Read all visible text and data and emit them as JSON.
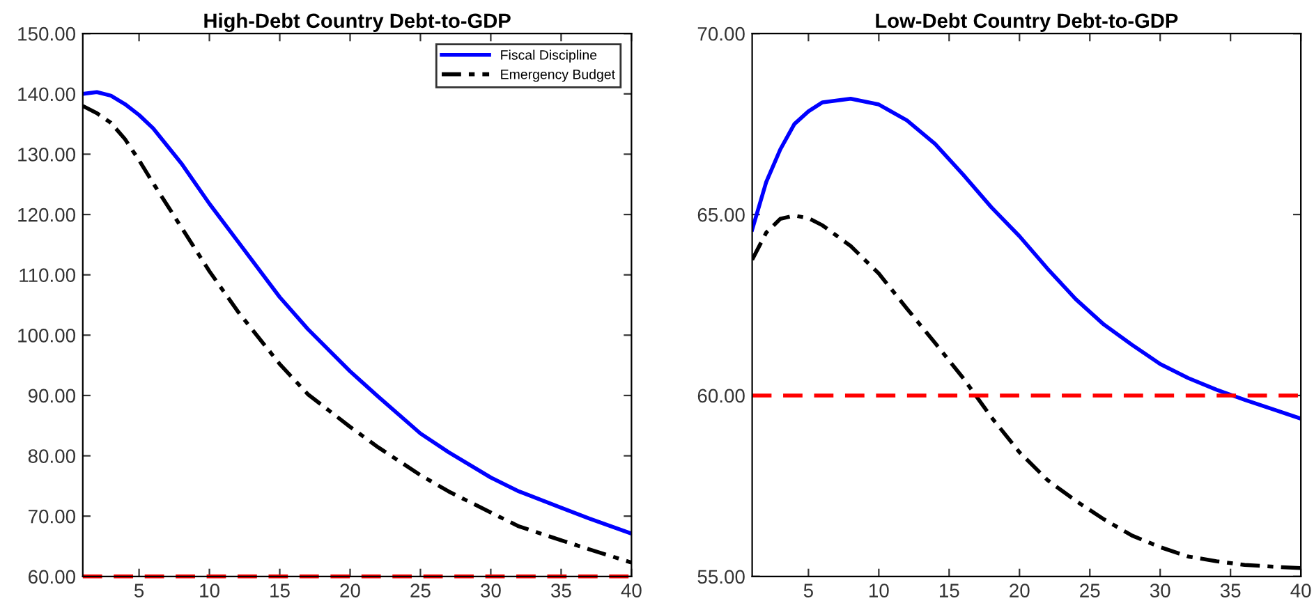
{
  "chart_data": [
    {
      "type": "line",
      "title": "High-Debt Country Debt-to-GDP",
      "xlim": [
        1,
        40
      ],
      "ylim": [
        60,
        150
      ],
      "xticks": [
        5,
        10,
        15,
        20,
        25,
        30,
        35,
        40
      ],
      "yticks": [
        {
          "value": 60,
          "label": "60.00"
        },
        {
          "value": 70,
          "label": "70.00"
        },
        {
          "value": 80,
          "label": "80.00"
        },
        {
          "value": 90,
          "label": "90.00"
        },
        {
          "value": 100,
          "label": "100.00"
        },
        {
          "value": 110,
          "label": "110.00"
        },
        {
          "value": 120,
          "label": "120.00"
        },
        {
          "value": 130,
          "label": "130.00"
        },
        {
          "value": 140,
          "label": "140.00"
        },
        {
          "value": 150,
          "label": "150.00"
        }
      ],
      "legend": "top right",
      "grid": false,
      "series": [
        {
          "name": "Fiscal Discipline",
          "color": "#0000ff",
          "line_style": "solid",
          "x": [
            1,
            2,
            3,
            4,
            5,
            6,
            8,
            10,
            12,
            15,
            17,
            20,
            22,
            25,
            27,
            30,
            32,
            35,
            37,
            40
          ],
          "values": [
            140.0,
            140.3,
            139.7,
            138.3,
            136.5,
            134.3,
            128.5,
            121.8,
            115.6,
            106.3,
            101.0,
            94.0,
            89.8,
            83.7,
            80.6,
            76.4,
            74.1,
            71.4,
            69.6,
            67.1
          ]
        },
        {
          "name": "Emergency Budget",
          "color": "#000000",
          "line_style": "dashdot",
          "x": [
            1,
            2,
            3,
            4,
            5,
            6,
            8,
            10,
            12,
            15,
            17,
            20,
            22,
            25,
            27,
            30,
            32,
            35,
            37,
            40
          ],
          "values": [
            138.0,
            136.8,
            135.2,
            132.5,
            129.0,
            125.2,
            117.9,
            110.6,
            104.0,
            95.2,
            90.2,
            84.8,
            81.4,
            76.8,
            74.1,
            70.6,
            68.3,
            66.0,
            64.5,
            62.3
          ]
        }
      ],
      "ref_lines": [
        {
          "axis": "y",
          "value": 60,
          "color": "#ff0000",
          "line_style": "dashed"
        }
      ]
    },
    {
      "type": "line",
      "title": "Low-Debt Country Debt-to-GDP",
      "xlim": [
        1,
        40
      ],
      "ylim": [
        55,
        70
      ],
      "xticks": [
        5,
        10,
        15,
        20,
        25,
        30,
        35,
        40
      ],
      "yticks": [
        {
          "value": 55,
          "label": "55.00"
        },
        {
          "value": 60,
          "label": "60.00"
        },
        {
          "value": 65,
          "label": "65.00"
        },
        {
          "value": 70,
          "label": "70.00"
        }
      ],
      "grid": false,
      "series": [
        {
          "color": "#0000ff",
          "line_style": "solid",
          "x": [
            1,
            2,
            3,
            4,
            5,
            6,
            8,
            10,
            12,
            14,
            16,
            18,
            20,
            22,
            24,
            26,
            28,
            30,
            32,
            34,
            36,
            38,
            40
          ],
          "values": [
            64.58,
            65.9,
            66.8,
            67.5,
            67.85,
            68.1,
            68.2,
            68.04,
            67.6,
            66.95,
            66.1,
            65.2,
            64.4,
            63.5,
            62.66,
            61.96,
            61.4,
            60.87,
            60.48,
            60.16,
            59.88,
            59.62,
            59.36
          ]
        },
        {
          "color": "#000000",
          "line_style": "dashdot",
          "x": [
            1,
            2,
            3,
            4,
            5,
            6,
            8,
            10,
            12,
            14,
            16,
            18,
            20,
            22,
            24,
            26,
            28,
            30,
            32,
            34,
            36,
            38,
            40
          ],
          "values": [
            63.75,
            64.5,
            64.88,
            64.97,
            64.9,
            64.7,
            64.13,
            63.37,
            62.4,
            61.45,
            60.48,
            59.4,
            58.43,
            57.66,
            57.09,
            56.58,
            56.13,
            55.81,
            55.55,
            55.42,
            55.32,
            55.27,
            55.23
          ]
        }
      ],
      "ref_lines": [
        {
          "axis": "y",
          "value": 60,
          "color": "#ff0000",
          "line_style": "dashed"
        }
      ]
    }
  ]
}
